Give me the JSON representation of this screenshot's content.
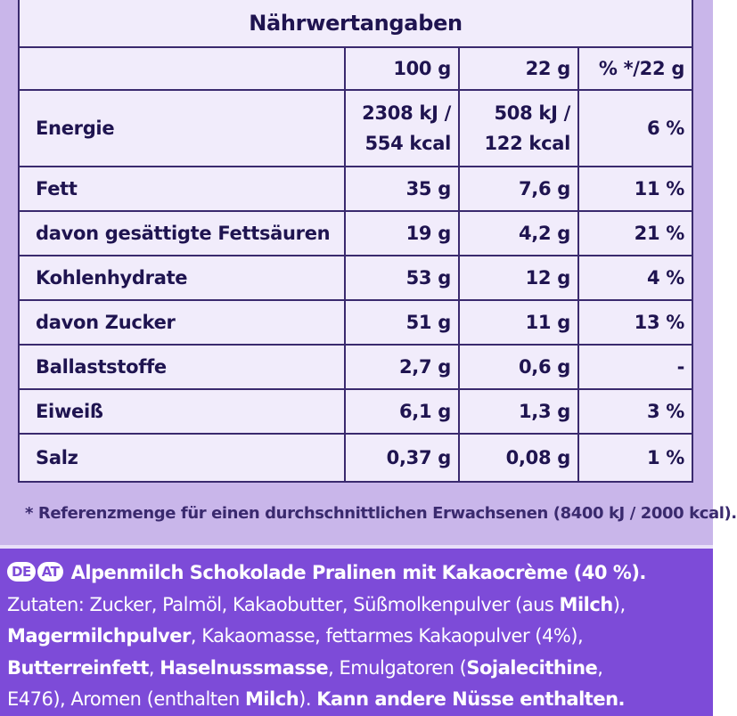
{
  "table": {
    "title": "Nährwertangaben",
    "headers": [
      "",
      "100 g",
      "22 g",
      "% */22 g"
    ],
    "energy": {
      "label": "Energie",
      "v100_line1": "2308 kJ /",
      "v100_line2": "554 kcal",
      "v22_line1": "508 kJ /",
      "v22_line2": "122 kcal",
      "pct": "6 %"
    },
    "rows": [
      {
        "label": "Fett",
        "v100": "35 g",
        "v22": "7,6 g",
        "pct": "11 %"
      },
      {
        "label": "davon gesättigte Fettsäuren",
        "v100": "19 g",
        "v22": "4,2 g",
        "pct": "21 %"
      },
      {
        "label": "Kohlenhydrate",
        "v100": "53 g",
        "v22": "12 g",
        "pct": "4 %"
      },
      {
        "label": "davon Zucker",
        "v100": "51 g",
        "v22": "11 g",
        "pct": "13 %"
      },
      {
        "label": "Ballaststoffe",
        "v100": "2,7 g",
        "v22": "0,6 g",
        "pct": "-"
      },
      {
        "label": "Eiweiß",
        "v100": "6,1 g",
        "v22": "1,3 g",
        "pct": "3 %"
      },
      {
        "label": "Salz",
        "v100": "0,37 g",
        "v22": "0,08 g",
        "pct": "1 %"
      }
    ]
  },
  "footnote": "* Referenzmenge für einen durchschnittlichen Erwachsenen (8400 kJ / 2000 kcal).",
  "ingredients": {
    "badge_de": "DE",
    "badge_at": "AT",
    "line1": "Alpenmilch Schokolade Pralinen mit Kakaocrème (40 %).",
    "line2_a": "Zutaten: Zucker, Palmöl, Kakaobutter, Süßmolkenpulver (aus ",
    "line2_b": "Milch",
    "line2_c": "),",
    "line3_a": "Magermilchpulver",
    "line3_b": ", Kakaomasse, fettarmes Kakaopulver (4%),",
    "line4_a": "Butterreinfett",
    "line4_b": ", ",
    "line4_c": "Haselnussmasse",
    "line4_d": ", Emulgatoren (",
    "line4_e": "Sojalecithine",
    "line4_f": ",",
    "line5_a": "E476), Aromen (enthalten ",
    "line5_b": "Milch",
    "line5_c": "). ",
    "line5_d": "Kann andere Nüsse enthalten."
  },
  "colors": {
    "panel_bg": "#c9b6ea",
    "table_bg": "#f1ecfb",
    "ingredient_bg": "#7d4bd8",
    "text_dark": "#1f1450"
  }
}
